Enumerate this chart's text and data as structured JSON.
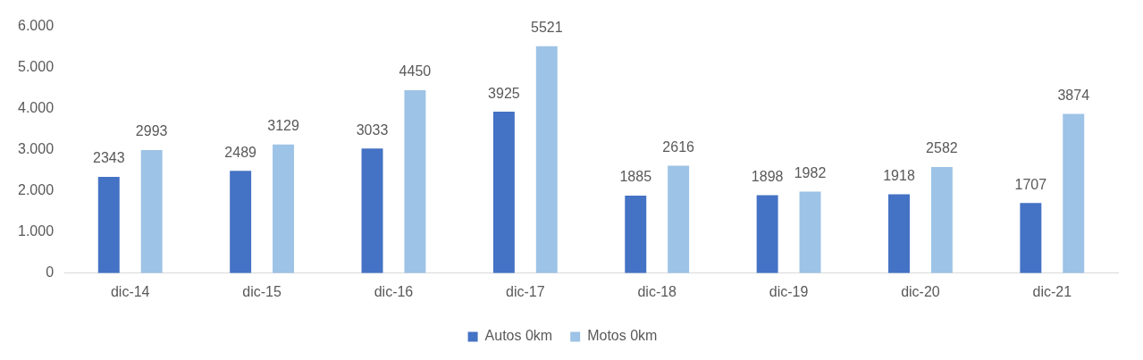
{
  "chart_data": {
    "type": "bar",
    "categories": [
      "dic-14",
      "dic-15",
      "dic-16",
      "dic-17",
      "dic-18",
      "dic-19",
      "dic-20",
      "dic-21"
    ],
    "series": [
      {
        "name": "Autos 0km",
        "color": "#4472c4",
        "values": [
          2343,
          2489,
          3033,
          3925,
          1885,
          1898,
          1918,
          1707
        ]
      },
      {
        "name": "Motos 0km",
        "color": "#9dc3e6",
        "values": [
          2993,
          3129,
          4450,
          5521,
          2616,
          1982,
          2582,
          3874
        ]
      }
    ],
    "ylim": [
      0,
      6000
    ],
    "yticks": [
      {
        "value": 0,
        "label": "0"
      },
      {
        "value": 1000,
        "label": "1.000"
      },
      {
        "value": 2000,
        "label": "2.000"
      },
      {
        "value": 3000,
        "label": "3.000"
      },
      {
        "value": 4000,
        "label": "4.000"
      },
      {
        "value": 5000,
        "label": "5.000"
      },
      {
        "value": 6000,
        "label": "6.000"
      }
    ],
    "grid": false,
    "legend": "bottom",
    "data_labels": true
  }
}
